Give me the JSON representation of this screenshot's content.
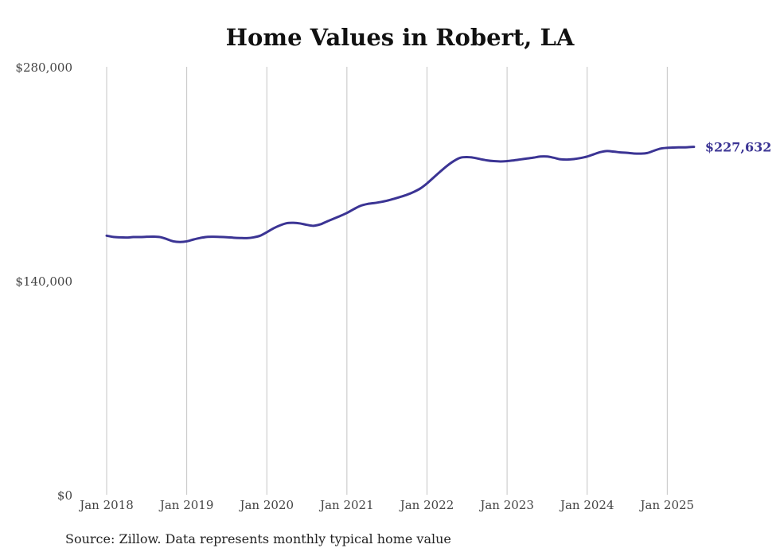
{
  "chart_data": {
    "type": "line",
    "title": "Home Values in Robert, LA",
    "xlabel": "",
    "ylabel": "",
    "ylim": [
      0,
      280000
    ],
    "xlim": [
      "2018-01",
      "2025-05"
    ],
    "y_ticks": [
      0,
      140000,
      280000
    ],
    "y_tick_labels": [
      "$0",
      "$140,000",
      "$280,000"
    ],
    "x_ticks": [
      "2018-01",
      "2019-01",
      "2020-01",
      "2021-01",
      "2022-01",
      "2023-01",
      "2024-01",
      "2025-01"
    ],
    "x_tick_labels": [
      "Jan 2018",
      "Jan 2019",
      "Jan 2020",
      "Jan 2021",
      "Jan 2022",
      "Jan 2023",
      "Jan 2024",
      "Jan 2025"
    ],
    "grid": "vertical",
    "line_color": "#3b3494",
    "end_label": "$227,632",
    "series": [
      {
        "name": "",
        "x": [
          "2018-01",
          "2018-02",
          "2018-03",
          "2018-04",
          "2018-05",
          "2018-06",
          "2018-07",
          "2018-08",
          "2018-09",
          "2018-10",
          "2018-11",
          "2018-12",
          "2019-01",
          "2019-02",
          "2019-03",
          "2019-04",
          "2019-05",
          "2019-06",
          "2019-07",
          "2019-08",
          "2019-09",
          "2019-10",
          "2019-11",
          "2019-12",
          "2020-01",
          "2020-02",
          "2020-03",
          "2020-04",
          "2020-05",
          "2020-06",
          "2020-07",
          "2020-08",
          "2020-09",
          "2020-10",
          "2020-11",
          "2020-12",
          "2021-01",
          "2021-02",
          "2021-03",
          "2021-04",
          "2021-05",
          "2021-06",
          "2021-07",
          "2021-08",
          "2021-09",
          "2021-10",
          "2021-11",
          "2021-12",
          "2022-01",
          "2022-02",
          "2022-03",
          "2022-04",
          "2022-05",
          "2022-06",
          "2022-07",
          "2022-08",
          "2022-09",
          "2022-10",
          "2022-11",
          "2022-12",
          "2023-01",
          "2023-02",
          "2023-03",
          "2023-04",
          "2023-05",
          "2023-06",
          "2023-07",
          "2023-08",
          "2023-09",
          "2023-10",
          "2023-11",
          "2023-12",
          "2024-01",
          "2024-02",
          "2024-03",
          "2024-04",
          "2024-05",
          "2024-06",
          "2024-07",
          "2024-08",
          "2024-09",
          "2024-10",
          "2024-11",
          "2024-12",
          "2025-01",
          "2025-02",
          "2025-03",
          "2025-04",
          "2025-05"
        ],
        "values": [
          169500,
          168700,
          168400,
          168300,
          168600,
          168600,
          168800,
          168900,
          168600,
          167300,
          165800,
          165400,
          165800,
          167000,
          168000,
          168700,
          168800,
          168700,
          168500,
          168200,
          168000,
          167900,
          168400,
          169500,
          171800,
          174300,
          176300,
          177700,
          177900,
          177500,
          176600,
          176000,
          176900,
          178800,
          180600,
          182400,
          184400,
          186800,
          189000,
          190200,
          190800,
          191500,
          192400,
          193600,
          194900,
          196300,
          198100,
          200400,
          203700,
          207600,
          211500,
          215200,
          218300,
          220500,
          220900,
          220500,
          219600,
          218800,
          218300,
          218100,
          218300,
          218800,
          219400,
          220000,
          220600,
          221300,
          221300,
          220500,
          219500,
          219300,
          219600,
          220300,
          221300,
          222800,
          224200,
          224900,
          224500,
          224000,
          223700,
          223300,
          223200,
          223600,
          225100,
          226500,
          227000,
          227200,
          227300,
          227400,
          227632
        ]
      }
    ]
  },
  "source": "Source: Zillow. Data represents monthly typical home value"
}
